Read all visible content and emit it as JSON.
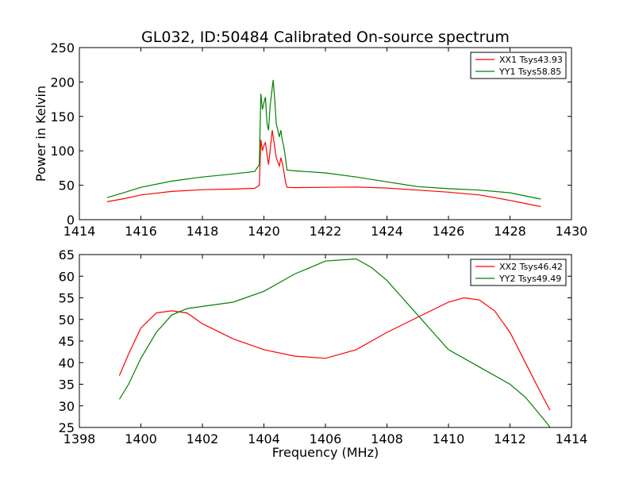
{
  "title": "GL032, ID:50484 Calibrated On-source spectrum",
  "colors": {
    "xx": "#ff0000",
    "yy": "#008000"
  },
  "chart_data": [
    {
      "type": "line",
      "title": "GL032, ID:50484 Calibrated On-source spectrum",
      "xlabel": "",
      "ylabel": "Power in Kelvin",
      "xlim": [
        1414,
        1430
      ],
      "ylim": [
        0,
        250
      ],
      "xticks": [
        "1414",
        "1416",
        "1418",
        "1420",
        "1422",
        "1424",
        "1426",
        "1428",
        "1430"
      ],
      "yticks": [
        "0",
        "50",
        "100",
        "150",
        "200",
        "250"
      ],
      "grid": false,
      "legend_position": "top-right",
      "series": [
        {
          "name": "XX1 Tsys43.93",
          "color": "#ff0000",
          "points": [
            [
              1414.9,
              26
            ],
            [
              1415.5,
              31
            ],
            [
              1416,
              36
            ],
            [
              1417,
              41
            ],
            [
              1418,
              43.5
            ],
            [
              1419,
              44.5
            ],
            [
              1419.7,
              45.5
            ],
            [
              1419.85,
              50
            ],
            [
              1419.9,
              116
            ],
            [
              1419.95,
              100
            ],
            [
              1420.0,
              108
            ],
            [
              1420.05,
              112
            ],
            [
              1420.1,
              95
            ],
            [
              1420.15,
              80
            ],
            [
              1420.2,
              100
            ],
            [
              1420.27,
              130
            ],
            [
              1420.32,
              115
            ],
            [
              1420.4,
              90
            ],
            [
              1420.5,
              78
            ],
            [
              1420.55,
              90
            ],
            [
              1420.6,
              82
            ],
            [
              1420.65,
              70
            ],
            [
              1420.7,
              55
            ],
            [
              1420.75,
              47
            ],
            [
              1421,
              46.5
            ],
            [
              1422,
              47
            ],
            [
              1423,
              47.5
            ],
            [
              1424,
              46
            ],
            [
              1425,
              43
            ],
            [
              1426,
              40
            ],
            [
              1427,
              36
            ],
            [
              1428,
              28
            ],
            [
              1429,
              19
            ]
          ]
        },
        {
          "name": "YY1 Tsys58.85",
          "color": "#008000",
          "points": [
            [
              1414.9,
              32
            ],
            [
              1415.5,
              40
            ],
            [
              1416,
              47
            ],
            [
              1417,
              56
            ],
            [
              1418,
              62
            ],
            [
              1419,
              66.5
            ],
            [
              1419.7,
              70
            ],
            [
              1419.85,
              80
            ],
            [
              1419.9,
              183
            ],
            [
              1419.95,
              160
            ],
            [
              1420.0,
              170
            ],
            [
              1420.05,
              178
            ],
            [
              1420.1,
              140
            ],
            [
              1420.15,
              130
            ],
            [
              1420.2,
              165
            ],
            [
              1420.3,
              203
            ],
            [
              1420.35,
              175
            ],
            [
              1420.4,
              140
            ],
            [
              1420.5,
              120
            ],
            [
              1420.55,
              130
            ],
            [
              1420.6,
              115
            ],
            [
              1420.65,
              105
            ],
            [
              1420.7,
              90
            ],
            [
              1420.75,
              72
            ],
            [
              1421,
              71
            ],
            [
              1422,
              68
            ],
            [
              1423,
              62
            ],
            [
              1424,
              55
            ],
            [
              1425,
              48
            ],
            [
              1426,
              45
            ],
            [
              1427,
              43
            ],
            [
              1428,
              39
            ],
            [
              1429,
              30
            ]
          ]
        }
      ]
    },
    {
      "type": "line",
      "title": "",
      "xlabel": "Frequency (MHz)",
      "ylabel": "",
      "xlim": [
        1398,
        1414
      ],
      "ylim": [
        25,
        65
      ],
      "xticks": [
        "1398",
        "1400",
        "1402",
        "1404",
        "1406",
        "1408",
        "1410",
        "1412",
        "1414"
      ],
      "yticks": [
        "25",
        "30",
        "35",
        "40",
        "45",
        "50",
        "55",
        "60",
        "65"
      ],
      "grid": false,
      "legend_position": "top-right",
      "series": [
        {
          "name": "XX2 Tsys46.42",
          "color": "#ff0000",
          "points": [
            [
              1399.3,
              37
            ],
            [
              1399.6,
              42
            ],
            [
              1400,
              48
            ],
            [
              1400.5,
              51.5
            ],
            [
              1401,
              52
            ],
            [
              1401.5,
              51.5
            ],
            [
              1402,
              49
            ],
            [
              1403,
              45.5
            ],
            [
              1404,
              43
            ],
            [
              1405,
              41.5
            ],
            [
              1406,
              41
            ],
            [
              1407,
              43
            ],
            [
              1408,
              47
            ],
            [
              1409,
              50.5
            ],
            [
              1410,
              54
            ],
            [
              1410.5,
              55
            ],
            [
              1411,
              54.5
            ],
            [
              1411.5,
              52
            ],
            [
              1412,
              47
            ],
            [
              1412.5,
              40
            ],
            [
              1413,
              33
            ],
            [
              1413.3,
              29
            ]
          ]
        },
        {
          "name": "YY2 Tsys49.49",
          "color": "#008000",
          "points": [
            [
              1399.3,
              31.5
            ],
            [
              1399.6,
              35
            ],
            [
              1400,
              41
            ],
            [
              1400.5,
              47
            ],
            [
              1401,
              51
            ],
            [
              1401.5,
              52.5
            ],
            [
              1402,
              53
            ],
            [
              1403,
              54
            ],
            [
              1404,
              56.5
            ],
            [
              1405,
              60.5
            ],
            [
              1406,
              63.5
            ],
            [
              1407,
              64
            ],
            [
              1407.5,
              62
            ],
            [
              1408,
              59
            ],
            [
              1408.5,
              55
            ],
            [
              1409,
              51
            ],
            [
              1409.5,
              47
            ],
            [
              1410,
              43
            ],
            [
              1411,
              39
            ],
            [
              1412,
              35
            ],
            [
              1412.5,
              32
            ],
            [
              1413.2,
              26
            ],
            [
              1413.3,
              25
            ]
          ]
        }
      ]
    }
  ]
}
